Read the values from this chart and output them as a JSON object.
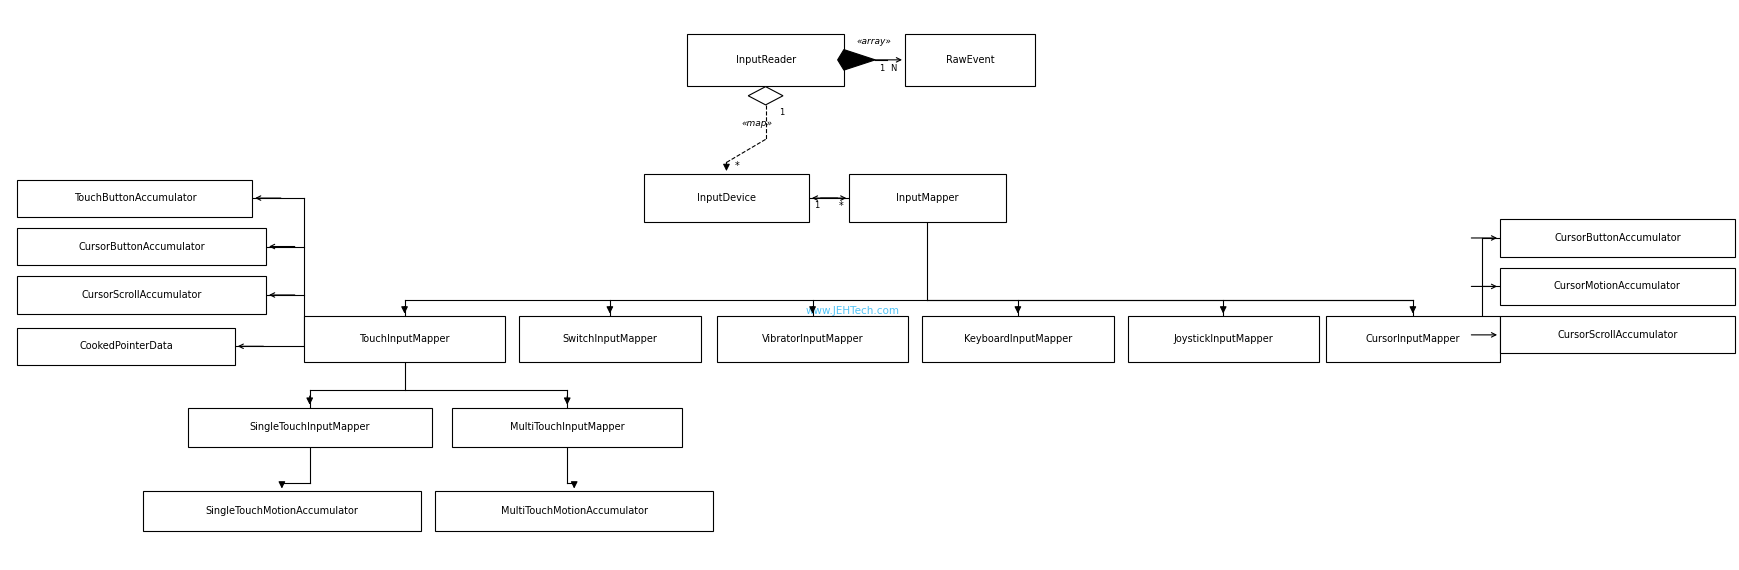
{
  "background_color": "#ffffff",
  "watermark": "www.JEHTech.com",
  "watermark_color": "#4fc3f7",
  "fig_w": 17.4,
  "fig_h": 5.7,
  "dpi": 100,
  "fontsize": 7.0,
  "lw": 0.8,
  "boxes": {
    "InputReader": [
      0.395,
      0.85,
      0.09,
      0.09
    ],
    "RawEvent": [
      0.52,
      0.85,
      0.075,
      0.09
    ],
    "InputDevice": [
      0.37,
      0.61,
      0.095,
      0.085
    ],
    "InputMapper": [
      0.488,
      0.61,
      0.09,
      0.085
    ],
    "TouchInputMapper": [
      0.175,
      0.365,
      0.115,
      0.08
    ],
    "SwitchInputMapper": [
      0.298,
      0.365,
      0.105,
      0.08
    ],
    "VibratorInputMapper": [
      0.412,
      0.365,
      0.11,
      0.08
    ],
    "KeyboardInputMapper": [
      0.53,
      0.365,
      0.11,
      0.08
    ],
    "JoystickInputMapper": [
      0.648,
      0.365,
      0.11,
      0.08
    ],
    "CursorInputMapper": [
      0.762,
      0.365,
      0.1,
      0.08
    ],
    "TouchButtonAccumulator": [
      0.01,
      0.62,
      0.135,
      0.065
    ],
    "CursorButtonAccumulatorL": [
      0.01,
      0.535,
      0.143,
      0.065
    ],
    "CursorScrollAccumulatorL": [
      0.01,
      0.45,
      0.143,
      0.065
    ],
    "CookedPointerData": [
      0.01,
      0.36,
      0.125,
      0.065
    ],
    "SingleTouchInputMapper": [
      0.108,
      0.215,
      0.14,
      0.07
    ],
    "MultiTouchInputMapper": [
      0.26,
      0.215,
      0.132,
      0.07
    ],
    "SingleTouchMotionAccumulator": [
      0.082,
      0.068,
      0.16,
      0.07
    ],
    "MultiTouchMotionAccumulator": [
      0.25,
      0.068,
      0.16,
      0.07
    ],
    "CursorButtonAccumulatorR": [
      0.862,
      0.55,
      0.135,
      0.065
    ],
    "CursorMotionAccumulator": [
      0.862,
      0.465,
      0.135,
      0.065
    ],
    "CursorScrollAccumulatorR": [
      0.862,
      0.38,
      0.135,
      0.065
    ]
  },
  "box_labels": {
    "CursorButtonAccumulatorL": "CursorButtonAccumulator",
    "CursorScrollAccumulatorL": "CursorScrollAccumulator",
    "CursorButtonAccumulatorR": "CursorButtonAccumulator",
    "CursorScrollAccumulatorR": "CursorScrollAccumulator"
  }
}
